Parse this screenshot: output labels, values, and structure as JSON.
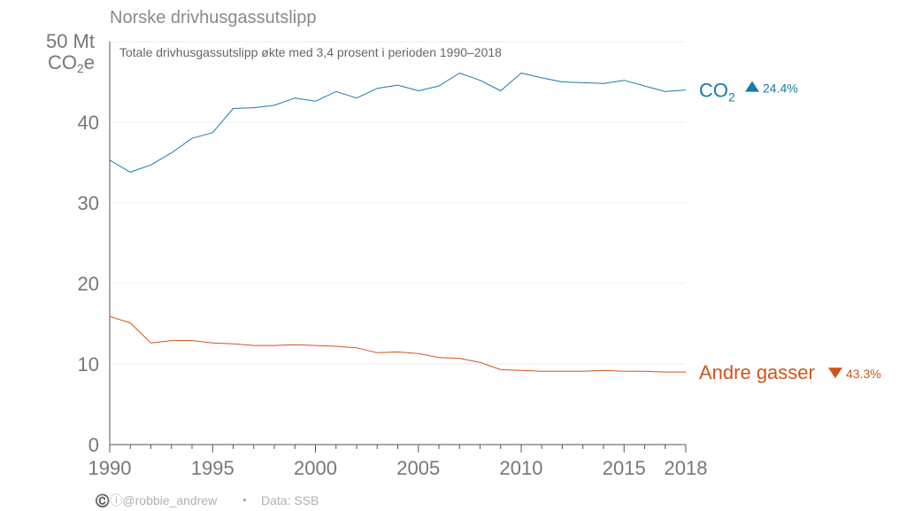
{
  "colors": {
    "co2": "#1a7aaa",
    "other": "#d0541a",
    "axis": "#555555",
    "grid": "#ececec",
    "text": "#777777"
  },
  "header": {
    "title": "Norske drivhusgassutslipp",
    "subtitle": "Totale drivhusgassutslipp økte med 3,4 prosent i perioden 1990–2018",
    "unit_line1": "50 Mt",
    "unit_line2_pre": "CO",
    "unit_line2_sub": "2",
    "unit_line2_post": "e"
  },
  "footer": {
    "credit": "©️ⓘ@robbie_andrew",
    "bullet": "•",
    "source": "Data: SSB"
  },
  "labels": {
    "co2_name_pre": "CO",
    "co2_name_sub": "2",
    "co2_change": "24.4%",
    "co2_arrow": "up",
    "other_name": "Andre gasser",
    "other_change": "43.3%",
    "other_arrow": "down"
  },
  "chart_data": {
    "type": "line",
    "title": "Norske drivhusgassutslipp",
    "subtitle": "Totale drivhusgassutslipp økte med 3,4 prosent i perioden 1990–2018",
    "ylabel": "Mt CO2e",
    "xlim": [
      1990,
      2018
    ],
    "ylim": [
      0,
      50
    ],
    "grid": true,
    "legend": "inline-right",
    "x_ticks": [
      1990,
      1995,
      2000,
      2005,
      2010,
      2015,
      2018
    ],
    "y_ticks": [
      0,
      10,
      20,
      30,
      40,
      50
    ],
    "x": [
      1990,
      1991,
      1992,
      1993,
      1994,
      1995,
      1996,
      1997,
      1998,
      1999,
      2000,
      2001,
      2002,
      2003,
      2004,
      2005,
      2006,
      2007,
      2008,
      2009,
      2010,
      2011,
      2012,
      2013,
      2014,
      2015,
      2016,
      2017,
      2018
    ],
    "series": [
      {
        "name": "CO2",
        "change": "24.4%",
        "values": [
          35.3,
          33.8,
          34.7,
          36.2,
          38.0,
          38.7,
          41.7,
          41.8,
          42.1,
          43.0,
          42.6,
          43.8,
          43.0,
          44.2,
          44.6,
          43.9,
          44.5,
          46.1,
          45.2,
          43.9,
          46.1,
          45.5,
          45.0,
          44.9,
          44.8,
          45.2,
          44.5,
          43.8,
          44.0
        ]
      },
      {
        "name": "Andre gasser",
        "change": "43.3%",
        "values": [
          15.9,
          15.1,
          12.6,
          12.9,
          12.9,
          12.6,
          12.5,
          12.3,
          12.3,
          12.4,
          12.3,
          12.2,
          12.0,
          11.4,
          11.5,
          11.3,
          10.8,
          10.7,
          10.2,
          9.3,
          9.2,
          9.1,
          9.1,
          9.1,
          9.2,
          9.1,
          9.1,
          9.0,
          9.0
        ]
      }
    ]
  }
}
